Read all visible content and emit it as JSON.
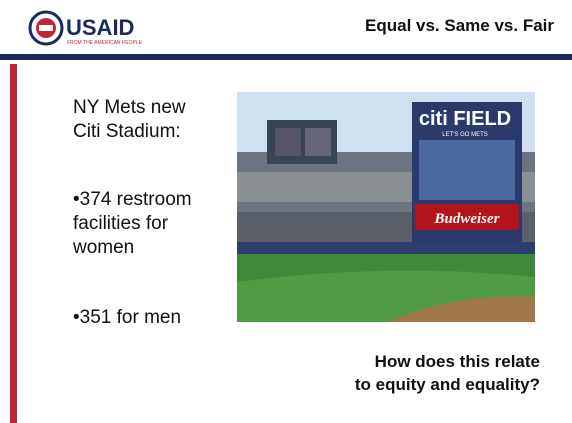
{
  "header": {
    "logo_text": "USAID",
    "logo_subtext": "FROM THE AMERICAN PEOPLE",
    "title": "Equal vs. Same vs. Fair"
  },
  "body": {
    "intro": "NY Mets new Citi Stadium:",
    "bullets": [
      "•374 restroom facilities for women",
      "•351 for men"
    ]
  },
  "image": {
    "signs": [
      "citi FIELD",
      "LET'S GO METS",
      "Budweiser"
    ]
  },
  "question": [
    "How does this relate",
    "to equity and equality?"
  ]
}
